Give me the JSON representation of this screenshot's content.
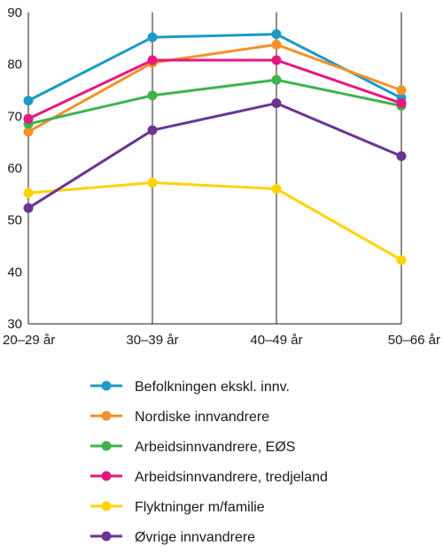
{
  "chart_data": {
    "type": "line",
    "categories": [
      "20–29 år",
      "30–39 år",
      "40–49 år",
      "50–66 år"
    ],
    "ylim": [
      30,
      90
    ],
    "yticks": [
      30,
      40,
      50,
      60,
      70,
      80,
      90
    ],
    "grid": "vertical",
    "legend_position": "bottom",
    "series": [
      {
        "name": "Befolkningen ekskl. innv.",
        "color": "#1b9bc5",
        "values": [
          73,
          85.2,
          85.8,
          73.5
        ]
      },
      {
        "name": "Nordiske innvandrere",
        "color": "#f5902a",
        "values": [
          67,
          80.3,
          83.8,
          75
        ]
      },
      {
        "name": "Arbeidsinnvandrere, EØS",
        "color": "#3fb34f",
        "values": [
          68.5,
          74,
          77,
          72
        ]
      },
      {
        "name": "Arbeidsinnvandrere, tredjeland",
        "color": "#e6177f",
        "values": [
          69.5,
          80.8,
          80.8,
          72.5
        ]
      },
      {
        "name": "Flyktninger m/familie",
        "color": "#ffd200",
        "values": [
          55.2,
          57.2,
          56,
          42.3
        ]
      },
      {
        "name": "Øvrige innvandrere",
        "color": "#6a3592",
        "values": [
          52.3,
          67.3,
          72.5,
          62.3
        ]
      }
    ]
  }
}
